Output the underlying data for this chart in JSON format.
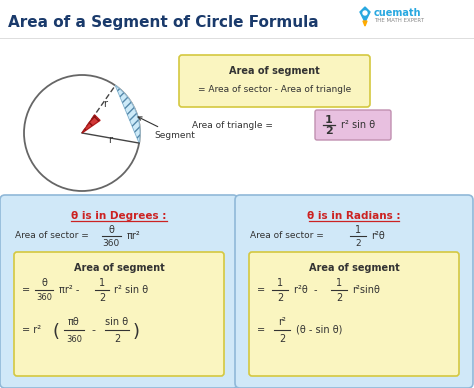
{
  "title": "Area of a Segment of Circle Formula",
  "title_color": "#1a3a6b",
  "bg_color": "#ffffff",
  "top_box_text1": "Area of segment",
  "top_box_text2": "= Area of sector - Area of triangle",
  "top_box_bg": "#faf5c0",
  "top_box_border": "#d4c840",
  "triangle_box_bg": "#e8c0e0",
  "triangle_box_border": "#c090b0",
  "segment_label": "Segment",
  "left_panel_bg": "#d0e8f8",
  "left_panel_border": "#90b8d8",
  "right_panel_bg": "#d0e8f8",
  "right_panel_border": "#90b8d8",
  "inner_box_bg": "#faf5c0",
  "inner_box_border": "#d4c840",
  "deg_title": "θ is in Degrees :",
  "rad_title": "θ is in Radians :",
  "accent_color": "#cc2222",
  "text_color": "#333333",
  "cuemath_blue": "#29a8e0",
  "cuemath_sub": "THE MATH EXPERT"
}
